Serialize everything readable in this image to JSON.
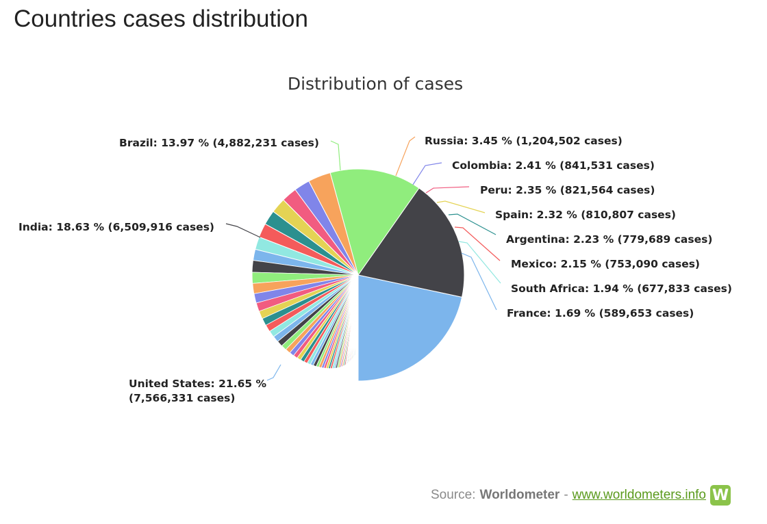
{
  "page": {
    "heading": "Countries cases distribution"
  },
  "chart_data": {
    "type": "pie",
    "title": "Distribution of cases",
    "slices": [
      {
        "name": "United States",
        "percent": 21.65,
        "cases": "7,566,331",
        "label": "United States: 21.65 %",
        "label2": "(7,566,331 cases)",
        "color": "#7cb5ec"
      },
      {
        "name": "India",
        "percent": 18.63,
        "cases": "6,509,916",
        "label": "India: 18.63 % (6,509,916 cases)",
        "color": "#434348"
      },
      {
        "name": "Brazil",
        "percent": 13.97,
        "cases": "4,882,231",
        "label": "Brazil: 13.97 % (4,882,231 cases)",
        "color": "#90ed7d"
      },
      {
        "name": "Russia",
        "percent": 3.45,
        "cases": "1,204,502",
        "label": "Russia: 3.45 % (1,204,502 cases)",
        "color": "#f7a35c"
      },
      {
        "name": "Colombia",
        "percent": 2.41,
        "cases": "841,531",
        "label": "Colombia: 2.41 % (841,531 cases)",
        "color": "#8085e9"
      },
      {
        "name": "Peru",
        "percent": 2.35,
        "cases": "821,564",
        "label": "Peru: 2.35 % (821,564 cases)",
        "color": "#f15c80"
      },
      {
        "name": "Spain",
        "percent": 2.32,
        "cases": "810,807",
        "label": "Spain: 2.32 % (810,807 cases)",
        "color": "#e4d354"
      },
      {
        "name": "Argentina",
        "percent": 2.23,
        "cases": "779,689",
        "label": "Argentina: 2.23 % (779,689 cases)",
        "color": "#2b908f"
      },
      {
        "name": "Mexico",
        "percent": 2.15,
        "cases": "753,090",
        "label": "Mexico: 2.15 % (753,090 cases)",
        "color": "#f45b5b"
      },
      {
        "name": "South Africa",
        "percent": 1.94,
        "cases": "677,833",
        "label": "South Africa: 1.94 % (677,833 cases)",
        "color": "#91e8e1"
      },
      {
        "name": "France",
        "percent": 1.69,
        "cases": "589,653",
        "label": "France: 1.69 % (589,653 cases)",
        "color": "#7cb5ec"
      }
    ],
    "palette": [
      "#7cb5ec",
      "#434348",
      "#90ed7d",
      "#f7a35c",
      "#8085e9",
      "#f15c80",
      "#e4d354",
      "#2b908f",
      "#f45b5b",
      "#91e8e1"
    ],
    "other_slices_percent": [
      1.5,
      1.4,
      1.3,
      1.2,
      1.1,
      1.0,
      0.95,
      0.9,
      0.85,
      0.8,
      0.75,
      0.7,
      0.65,
      0.6,
      0.55,
      0.5,
      0.5,
      0.45,
      0.45,
      0.4,
      0.4,
      0.35,
      0.35,
      0.3,
      0.3,
      0.3,
      0.25,
      0.25,
      0.25,
      0.2,
      0.2,
      0.2,
      0.2,
      0.15,
      0.15,
      0.15,
      0.15,
      0.15,
      0.1,
      0.1,
      0.1,
      0.1,
      0.1,
      0.1,
      0.1,
      0.1,
      0.1,
      0.1,
      0.1,
      0.1,
      0.1,
      0.1,
      0.05,
      0.05,
      0.05,
      0.05,
      0.05,
      0.05,
      0.05,
      0.05
    ]
  },
  "source": {
    "prefix": "Source:",
    "name": "Worldometer",
    "separator": "-",
    "link": "www.worldometers.info",
    "logo_letter": "W"
  }
}
